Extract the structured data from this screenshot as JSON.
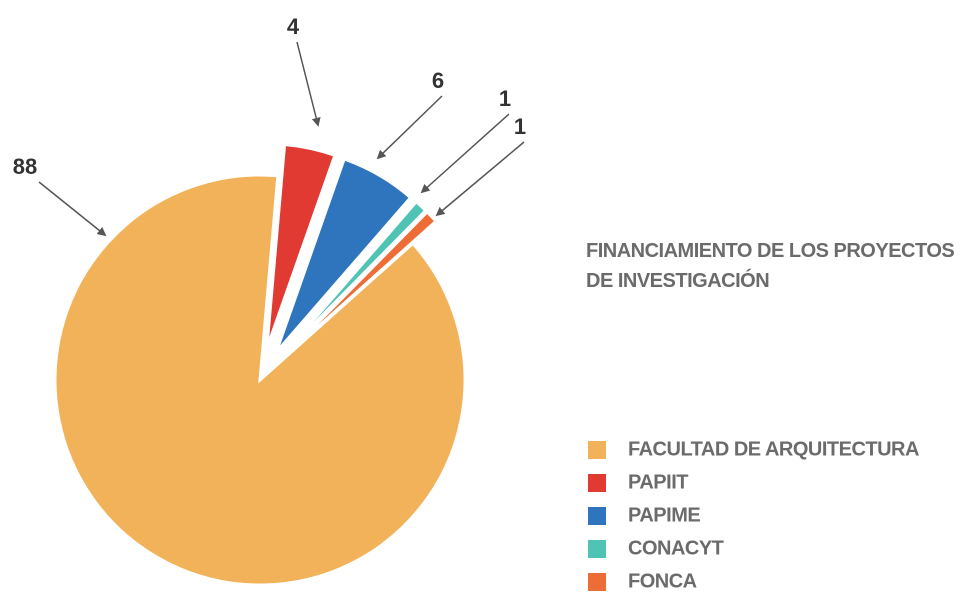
{
  "chart_data": {
    "type": "pie",
    "title": "FINANCIAMIENTO DE LOS PROYECTOS DE INVESTIGACIÓN",
    "categories": [
      "FACULTAD DE ARQUITECTURA",
      "PAPIIT",
      "PAPIME",
      "CONACYT",
      "FONCA"
    ],
    "values": [
      88,
      4,
      6,
      1,
      1
    ],
    "colors": [
      "#f2b25a",
      "#e03a33",
      "#2f75bd",
      "#4fc4b5",
      "#ee6c36"
    ],
    "legend": "right"
  }
}
